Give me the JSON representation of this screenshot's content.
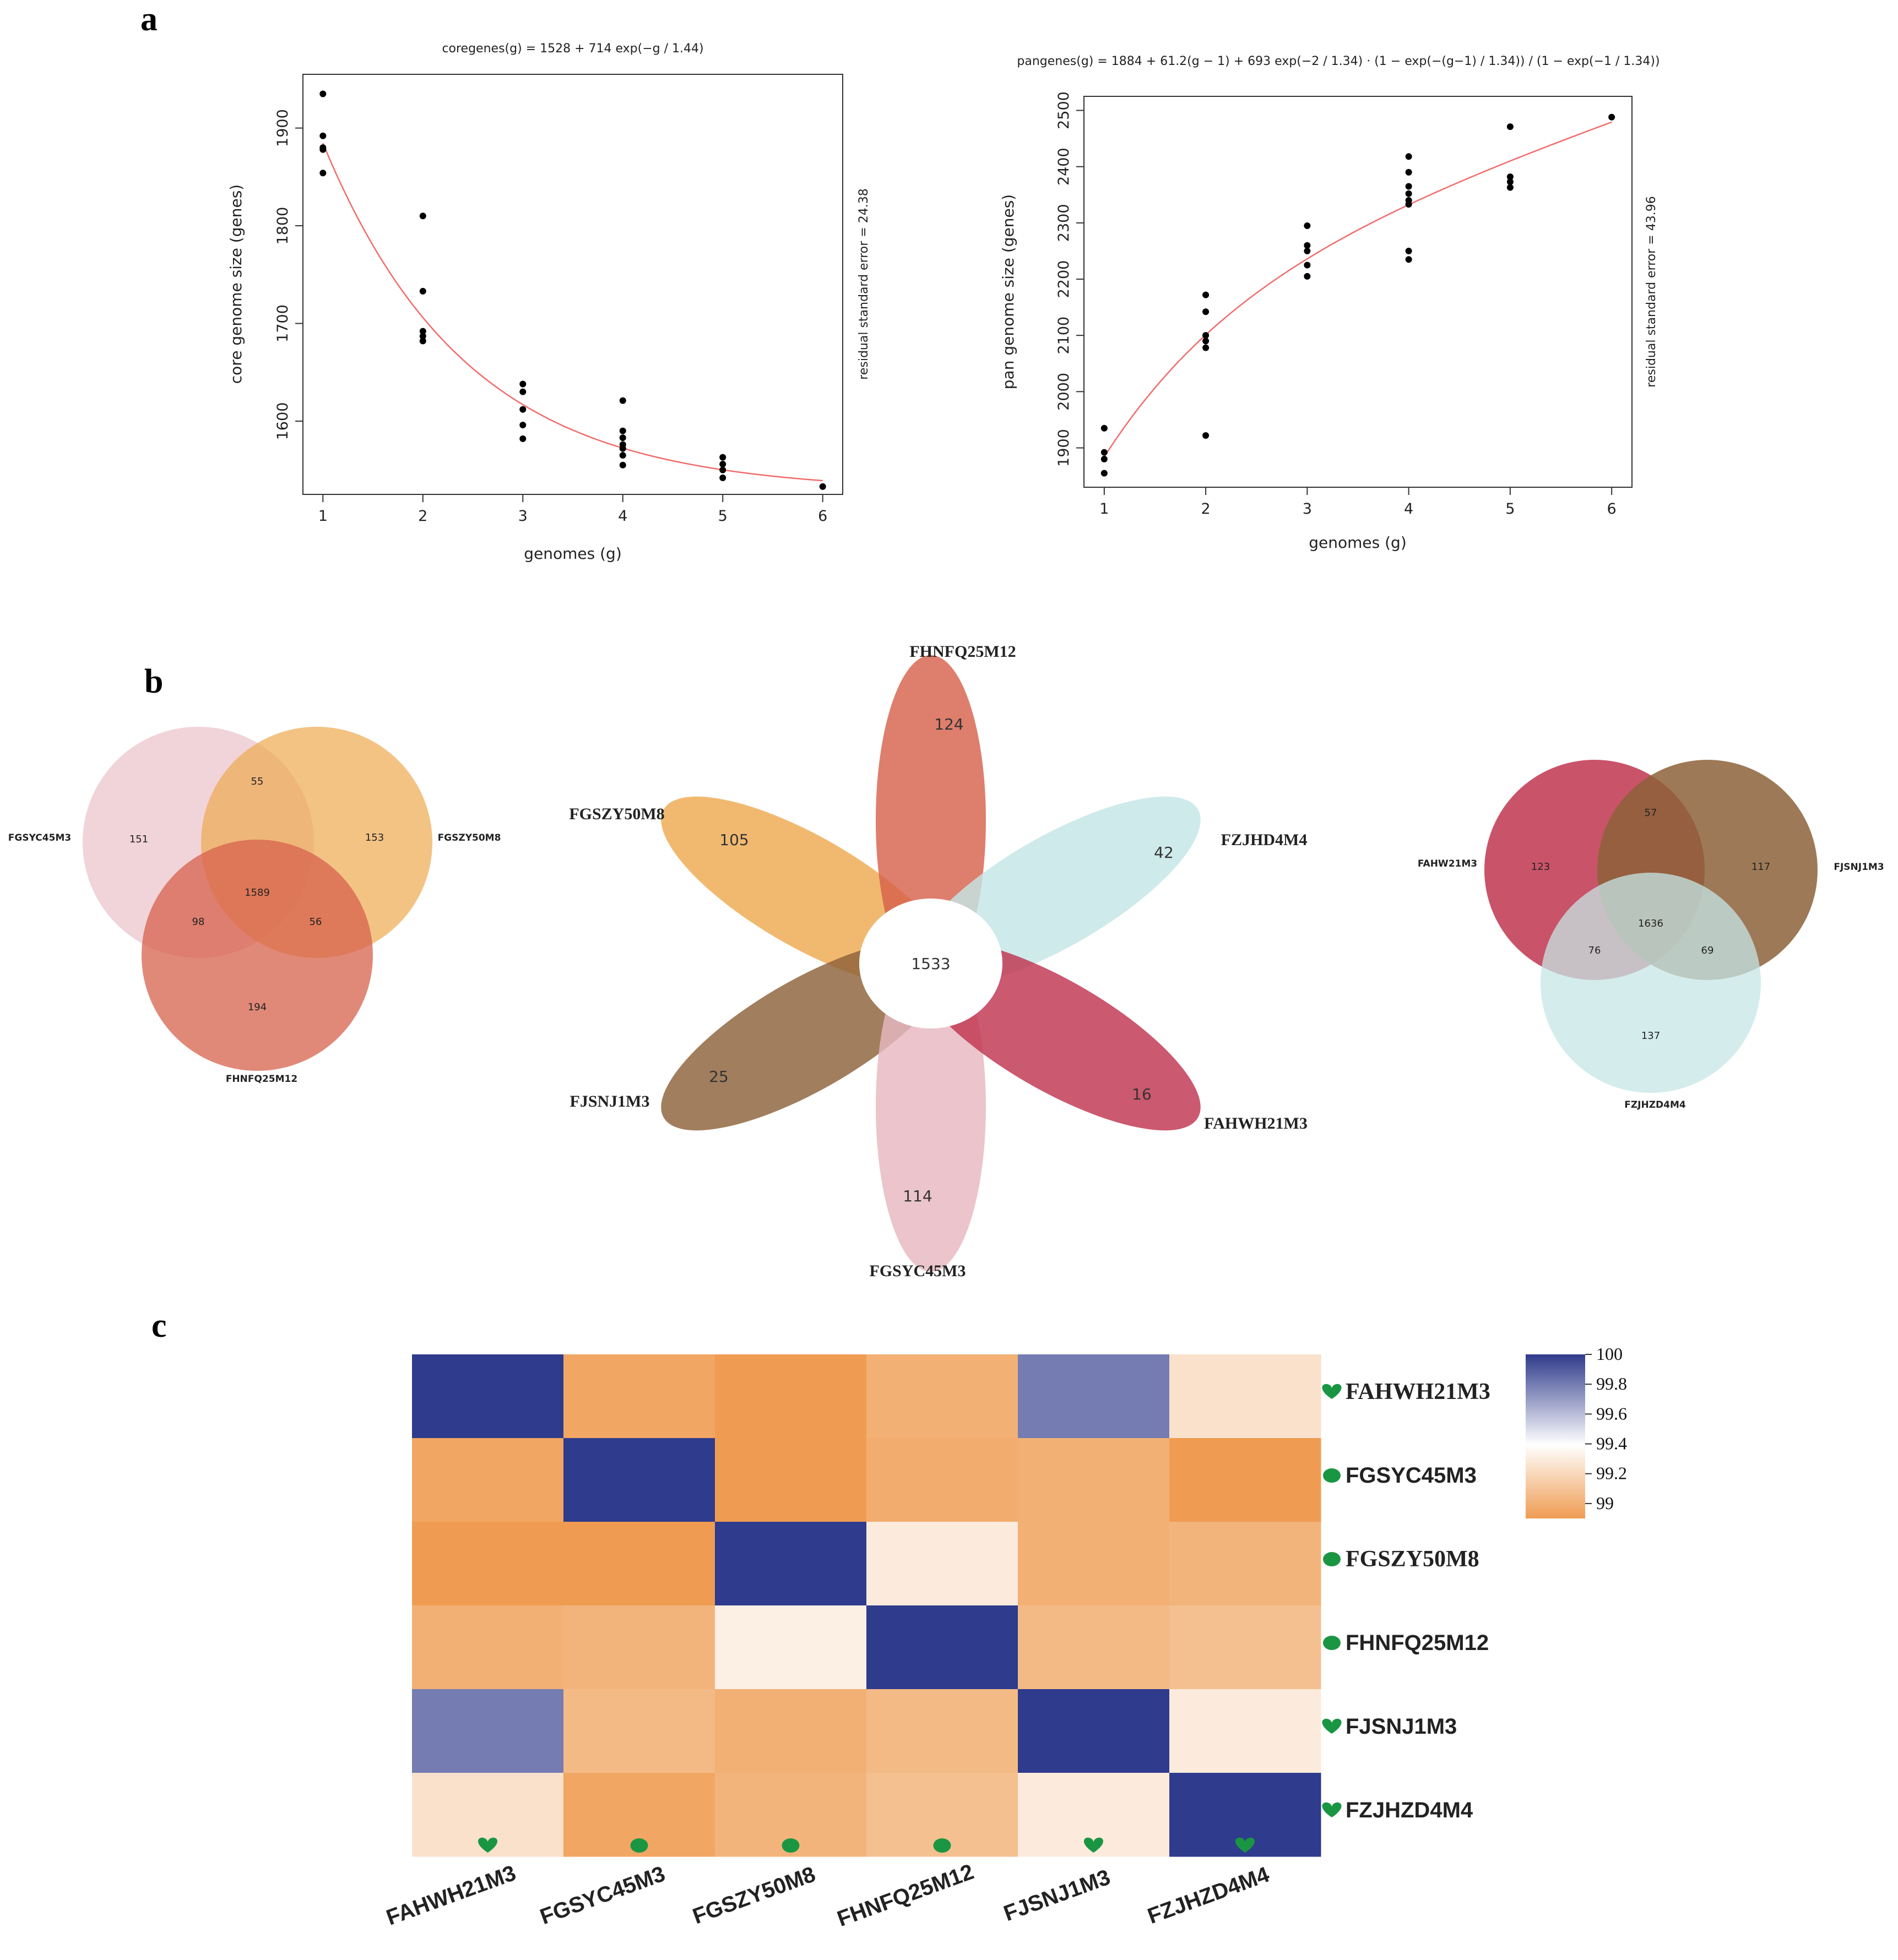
{
  "panels": {
    "a": "a",
    "b": "b",
    "c": "c"
  },
  "chart_data": [
    {
      "type": "scatter",
      "panel": "a",
      "title": "coregenes(g) = 1528 + 714 exp(−g / 1.44)",
      "xlabel": "genomes (g)",
      "ylabel": "core genome size (genes)",
      "right_label": "residual standard error = 24.38",
      "xticks": [
        1,
        2,
        3,
        4,
        5,
        6
      ],
      "yticks": [
        1600,
        1700,
        1800,
        1900
      ],
      "xlim": [
        0.8,
        6.2
      ],
      "ylim": [
        1525,
        1955
      ],
      "points": [
        [
          1,
          1935
        ],
        [
          1,
          1892
        ],
        [
          1,
          1880
        ],
        [
          1,
          1878
        ],
        [
          1,
          1854
        ],
        [
          2,
          1810
        ],
        [
          2,
          1733
        ],
        [
          2,
          1692
        ],
        [
          2,
          1687
        ],
        [
          2,
          1682
        ],
        [
          3,
          1638
        ],
        [
          3,
          1630
        ],
        [
          3,
          1612
        ],
        [
          3,
          1596
        ],
        [
          3,
          1582
        ],
        [
          4,
          1621
        ],
        [
          4,
          1590
        ],
        [
          4,
          1583
        ],
        [
          4,
          1576
        ],
        [
          4,
          1572
        ],
        [
          4,
          1565
        ],
        [
          4,
          1555
        ],
        [
          5,
          1563
        ],
        [
          5,
          1556
        ],
        [
          5,
          1550
        ],
        [
          5,
          1542
        ],
        [
          6,
          1533
        ]
      ],
      "fit": {
        "a": 1528,
        "b": 714,
        "c": 1.44,
        "color": "#f26b6b"
      }
    },
    {
      "type": "scatter",
      "panel": "a",
      "title": "pangenes(g) = 1884 + 61.2(g − 1) + 693 exp(−2 / 1.34) · (1 − exp(−(g−1) / 1.34)) / (1 − exp(−1 / 1.34))",
      "xlabel": "genomes (g)",
      "ylabel": "pan genome size (genes)",
      "right_label": "residual standard error = 43.96",
      "xticks": [
        1,
        2,
        3,
        4,
        5,
        6
      ],
      "yticks": [
        1900,
        2000,
        2100,
        2200,
        2300,
        2400,
        2500
      ],
      "xlim": [
        0.8,
        6.2
      ],
      "ylim": [
        1830,
        2525
      ],
      "points": [
        [
          1,
          1935
        ],
        [
          1,
          1892
        ],
        [
          1,
          1880
        ],
        [
          1,
          1855
        ],
        [
          2,
          2172
        ],
        [
          2,
          2142
        ],
        [
          2,
          2100
        ],
        [
          2,
          2090
        ],
        [
          2,
          2078
        ],
        [
          2,
          1922
        ],
        [
          3,
          2295
        ],
        [
          3,
          2260
        ],
        [
          3,
          2250
        ],
        [
          3,
          2225
        ],
        [
          3,
          2205
        ],
        [
          4,
          2418
        ],
        [
          4,
          2390
        ],
        [
          4,
          2365
        ],
        [
          4,
          2352
        ],
        [
          4,
          2340
        ],
        [
          4,
          2333
        ],
        [
          4,
          2250
        ],
        [
          4,
          2235
        ],
        [
          5,
          2471
        ],
        [
          5,
          2382
        ],
        [
          5,
          2373
        ],
        [
          5,
          2363
        ],
        [
          6,
          2488
        ]
      ],
      "fit": {
        "a": 1884,
        "b": 61.2,
        "c": 693,
        "d": 1.34,
        "color": "#f26b6b"
      }
    },
    {
      "type": "venn",
      "panel": "b",
      "sets": [
        "FGSYC45M3",
        "FGSZY50M8",
        "FHNFQ25M12"
      ],
      "colors": [
        "#e6b8bf",
        "#eeaa50",
        "#d7614c"
      ],
      "regions": {
        "only_1": "151",
        "only_2": "153",
        "only_3": "194",
        "1_2": "55",
        "1_3": "98",
        "2_3": "56",
        "all": "1589"
      }
    },
    {
      "type": "flower",
      "panel": "b",
      "core": "1533",
      "petals": [
        {
          "name": "FHNFQ25M12",
          "value": "124",
          "color": "#d7614c"
        },
        {
          "name": "FZJHD4M4",
          "value": "42",
          "color": "#c5e5e5"
        },
        {
          "name": "FAHWH21M3",
          "value": "16",
          "color": "#c0354f"
        },
        {
          "name": "FGSYC45M3",
          "value": "114",
          "color": "#e6b8bf"
        },
        {
          "name": "FJSNJ1M3",
          "value": "25",
          "color": "#8c6239"
        },
        {
          "name": "FGSZY50M8",
          "value": "105",
          "color": "#eeaa50"
        }
      ]
    },
    {
      "type": "venn",
      "panel": "b",
      "sets": [
        "FAHW21M3",
        "FJSNJ1M3",
        "FZJHZD4M4"
      ],
      "colors": [
        "#c0354f",
        "#8c6239",
        "#c5e5e5"
      ],
      "regions": {
        "only_1": "123",
        "only_2": "117",
        "only_3": "137",
        "1_2": "57",
        "1_3": "76",
        "2_3": "69",
        "all": "1636"
      }
    },
    {
      "type": "heatmap",
      "panel": "c",
      "rows": [
        "FAHWH21M3",
        "FGSYC45M3",
        "FGSZY50M8",
        "FHNFQ25M12",
        "FJSNJ1M3",
        "FZJHZD4M4"
      ],
      "cols": [
        "FAHWH21M3",
        "FGSYC45M3",
        "FGSZY50M8",
        "FHNFQ25M12",
        "FJSNJ1M3",
        "FZJHZD4M4"
      ],
      "values": [
        [
          100,
          98.95,
          98.9,
          99.0,
          99.8,
          99.25
        ],
        [
          98.95,
          100,
          98.9,
          98.98,
          99.0,
          98.9
        ],
        [
          98.9,
          98.9,
          100,
          99.3,
          99.0,
          99.02
        ],
        [
          99.0,
          99.02,
          99.32,
          100,
          99.05,
          99.08
        ],
        [
          99.8,
          99.05,
          99.0,
          99.05,
          100,
          99.3
        ],
        [
          99.25,
          98.95,
          99.02,
          99.08,
          99.3,
          100
        ]
      ],
      "markers": [
        "heart",
        "dot",
        "dot",
        "dot",
        "heart",
        "heart"
      ],
      "colorbar": {
        "min": 98.9,
        "max": 100,
        "ticks": [
          "100",
          "99.8",
          "99.6",
          "99.4",
          "99.2",
          "99"
        ],
        "tick_values": [
          100,
          99.8,
          99.6,
          99.4,
          99.2,
          99.0
        ]
      },
      "colors": {
        "low": "#ef9c52",
        "mid": "#ffffff",
        "high": "#2f3b8c",
        "marker": "#1a9643"
      }
    }
  ]
}
